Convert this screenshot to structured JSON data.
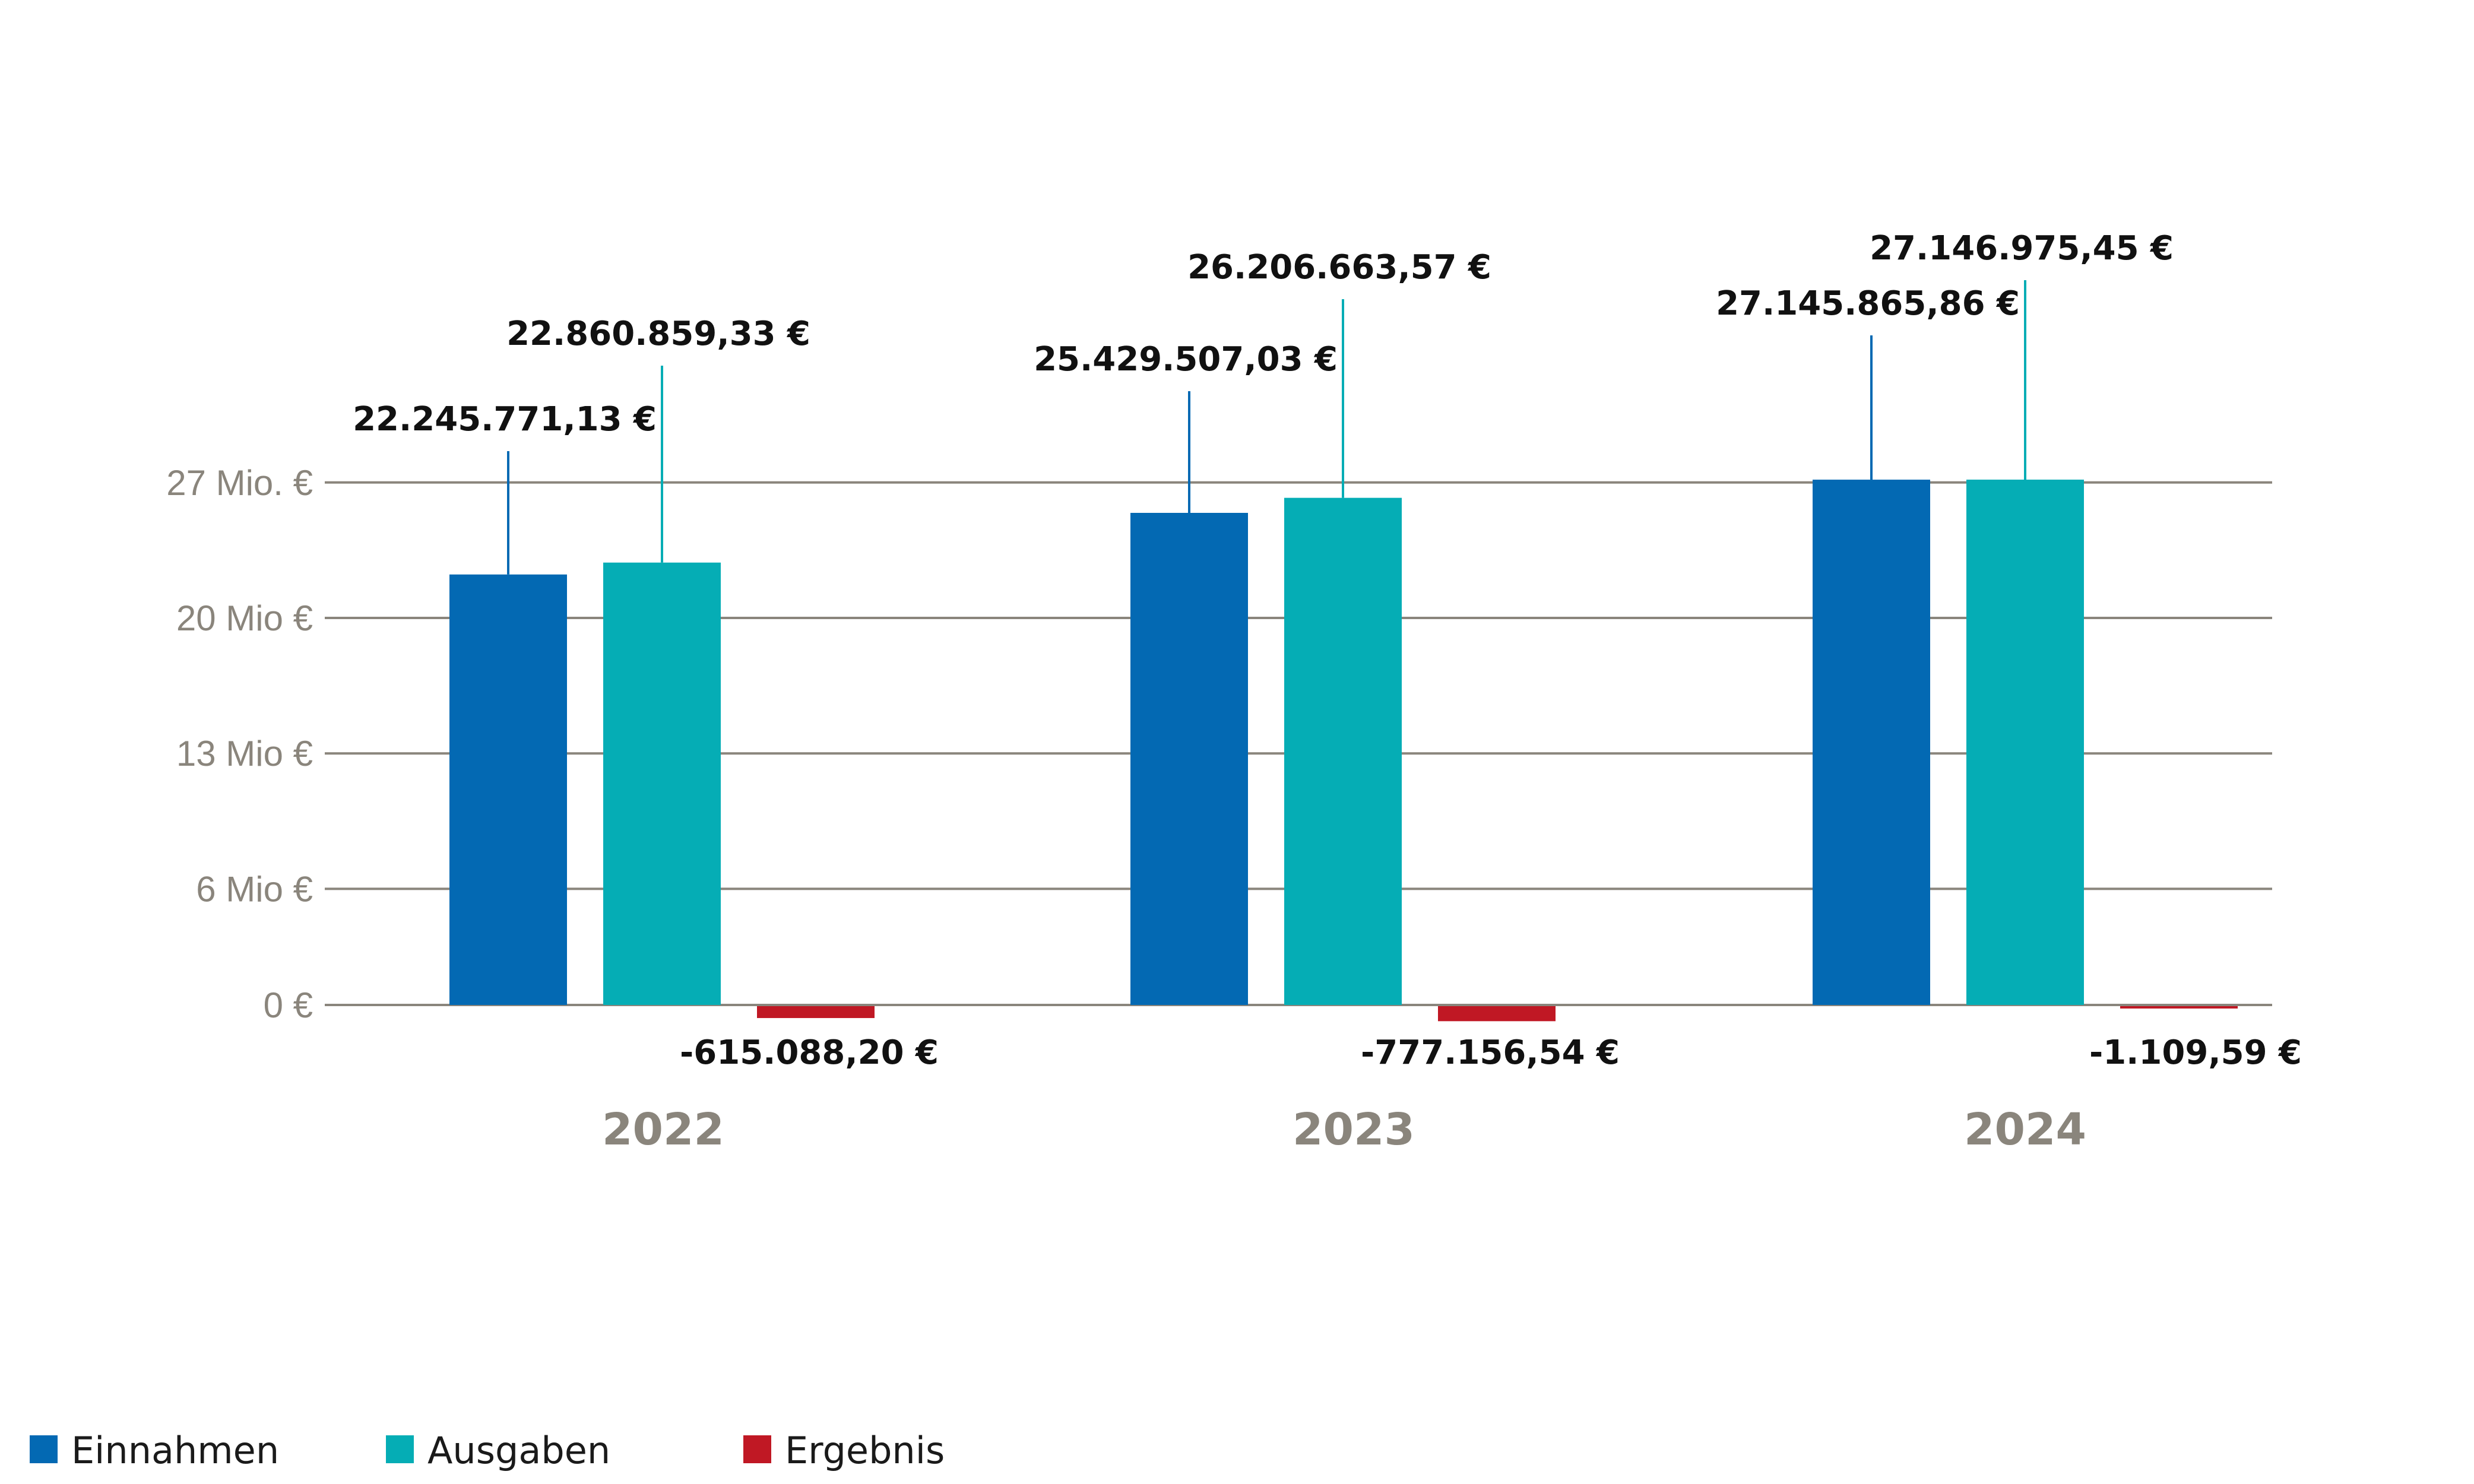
{
  "chart_data": {
    "type": "bar",
    "categories": [
      "2022",
      "2023",
      "2024"
    ],
    "series": [
      {
        "name": "Einnahmen",
        "color": "#0369b3",
        "values": [
          22245771.13,
          25429507.03,
          27145865.86
        ],
        "labels": [
          "22.245.771,13 €",
          "25.429.507,03 €",
          "27.145.865,86 €"
        ]
      },
      {
        "name": "Ausgaben",
        "color": "#05adb5",
        "values": [
          22860859.33,
          26206663.57,
          27146975.45
        ],
        "labels": [
          "22.860.859,33 €",
          "26.206.663,57 €",
          "27.146.975,45 €"
        ]
      },
      {
        "name": "Ergebnis",
        "color": "#c01824",
        "values": [
          -615088.2,
          -777156.54,
          -1109.59
        ],
        "labels": [
          "-615.088,20 €",
          "-777.156,54 €",
          "-1.109,59 €"
        ]
      }
    ],
    "y_ticks": [
      {
        "value": 0,
        "label": "0 €"
      },
      {
        "value": 6000000,
        "label": "6 Mio €"
      },
      {
        "value": 13000000,
        "label": "13 Mio €"
      },
      {
        "value": 20000000,
        "label": "20 Mio €"
      },
      {
        "value": 27000000,
        "label": "27 Mio. €"
      }
    ],
    "grid": true,
    "legend_position": "bottom-left",
    "xlabel": "",
    "ylabel": ""
  }
}
